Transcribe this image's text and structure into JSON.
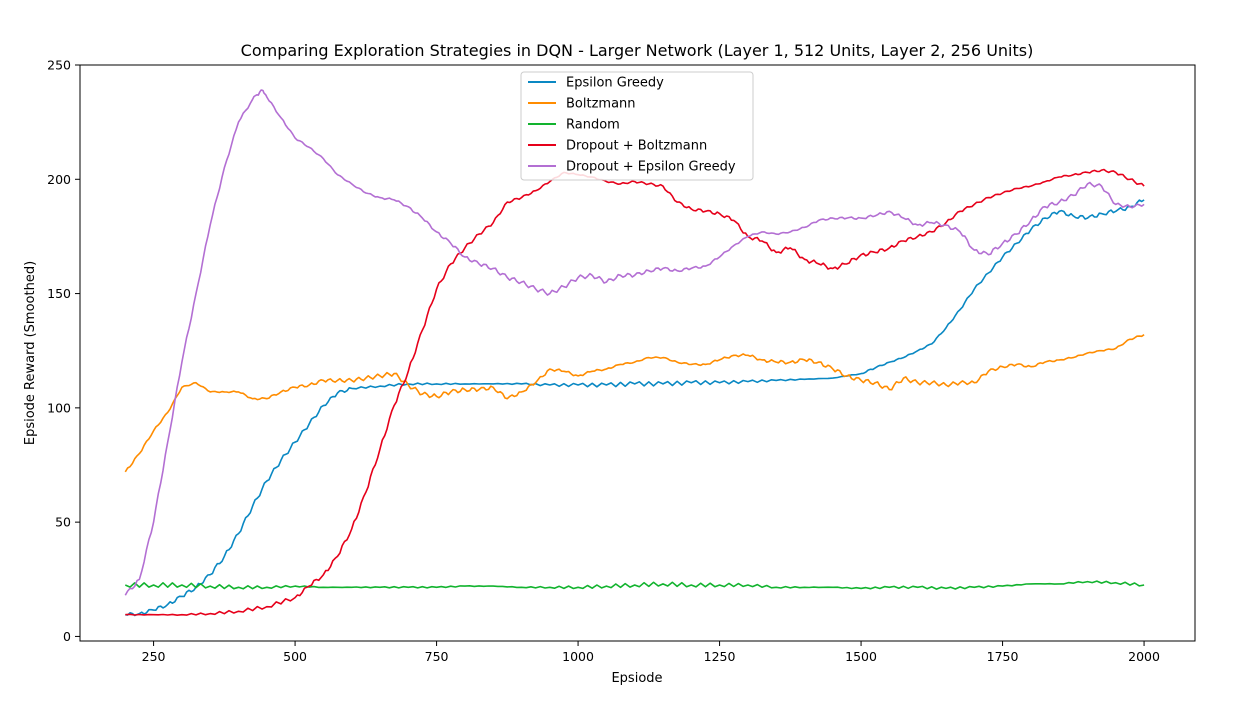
{
  "chart_data": {
    "type": "line",
    "title": "Comparing Exploration Strategies in DQN - Larger Network (Layer 1, 512 Units, Layer 2, 256 Units)",
    "xlabel": "Epsiode",
    "ylabel": "Epsiode Reward (Smoothed)",
    "xlim": [
      120,
      2090
    ],
    "ylim": [
      -2,
      250
    ],
    "xticks": [
      250,
      500,
      750,
      1000,
      1250,
      1500,
      1750,
      2000
    ],
    "yticks": [
      0,
      50,
      100,
      150,
      200,
      250
    ],
    "grid": false,
    "legend": "top-center",
    "series": [
      {
        "name": "Epsilon Greedy",
        "color": "#0a88c3",
        "x": [
          200,
          225,
          250,
          275,
          300,
          325,
          350,
          375,
          400,
          425,
          450,
          475,
          500,
          525,
          550,
          575,
          600,
          650,
          700,
          750,
          800,
          850,
          900,
          950,
          1000,
          1050,
          1100,
          1150,
          1200,
          1250,
          1300,
          1350,
          1400,
          1450,
          1500,
          1525,
          1550,
          1575,
          1600,
          1625,
          1650,
          1675,
          1700,
          1725,
          1750,
          1775,
          1800,
          1825,
          1850,
          1875,
          1900,
          1925,
          1950,
          1975,
          2000
        ],
        "values": [
          9.5,
          10,
          11.5,
          14,
          17.5,
          21.5,
          27,
          35,
          45,
          57,
          68,
          77,
          85,
          93,
          101,
          106.5,
          108.5,
          109.5,
          110.5,
          110.5,
          110.5,
          110.5,
          110.5,
          110,
          110,
          110,
          110.5,
          110.5,
          111,
          111,
          111.5,
          112,
          112.5,
          113,
          115,
          117.5,
          120,
          122,
          125,
          128,
          135,
          143,
          152,
          159,
          166,
          172,
          178,
          183,
          186,
          184,
          183,
          185,
          186,
          188,
          191
        ]
      },
      {
        "name": "Boltzmann",
        "color": "#ff8c00",
        "x": [
          200,
          225,
          250,
          275,
          300,
          325,
          350,
          375,
          400,
          425,
          450,
          475,
          500,
          525,
          550,
          575,
          600,
          625,
          650,
          675,
          700,
          725,
          750,
          775,
          800,
          825,
          850,
          875,
          900,
          925,
          950,
          975,
          1000,
          1025,
          1050,
          1075,
          1100,
          1125,
          1150,
          1175,
          1200,
          1225,
          1250,
          1275,
          1300,
          1325,
          1350,
          1375,
          1400,
          1425,
          1450,
          1475,
          1500,
          1525,
          1550,
          1575,
          1600,
          1625,
          1650,
          1675,
          1700,
          1725,
          1750,
          1775,
          1800,
          1825,
          1850,
          1875,
          1900,
          1925,
          1950,
          1975,
          2000
        ],
        "values": [
          72,
          80,
          90,
          98,
          109,
          111,
          107,
          107,
          107,
          104,
          104,
          107,
          109,
          110,
          112,
          112,
          112,
          113,
          114,
          115,
          110,
          106,
          105,
          107,
          108,
          108,
          109,
          104,
          107,
          111,
          117,
          116,
          114,
          116,
          117,
          119,
          120,
          122,
          122,
          120,
          119,
          119,
          121,
          123,
          123,
          121,
          120,
          120,
          121,
          120,
          117,
          114,
          112,
          111,
          108,
          113,
          111,
          111,
          110,
          111,
          111,
          116,
          118,
          119,
          118,
          120,
          121,
          122,
          124,
          125,
          126,
          130,
          132
        ]
      },
      {
        "name": "Random",
        "color": "#12b32e",
        "x": [
          200,
          250,
          300,
          350,
          400,
          450,
          500,
          550,
          600,
          650,
          700,
          750,
          800,
          850,
          900,
          950,
          1000,
          1050,
          1100,
          1150,
          1200,
          1250,
          1300,
          1350,
          1400,
          1450,
          1500,
          1550,
          1600,
          1650,
          1700,
          1750,
          1800,
          1850,
          1900,
          1950,
          2000
        ],
        "values": [
          22.5,
          22.5,
          22.5,
          22,
          21.5,
          21.5,
          22,
          21.5,
          21.5,
          21.5,
          21.5,
          21.5,
          22,
          22,
          21.5,
          21.5,
          21.5,
          22,
          22.5,
          23,
          22.5,
          22.5,
          22.5,
          21.5,
          21.5,
          21.5,
          21,
          21.5,
          21.5,
          21,
          21.5,
          22,
          23,
          23,
          24,
          23.5,
          22.5
        ]
      },
      {
        "name": "Dropout + Boltzmann",
        "color": "#e6001a",
        "x": [
          200,
          250,
          300,
          350,
          400,
          450,
          500,
          525,
          550,
          575,
          600,
          625,
          650,
          675,
          700,
          725,
          750,
          775,
          800,
          825,
          850,
          875,
          900,
          925,
          950,
          975,
          1000,
          1025,
          1050,
          1075,
          1100,
          1125,
          1150,
          1175,
          1200,
          1225,
          1250,
          1275,
          1300,
          1325,
          1350,
          1375,
          1400,
          1425,
          1450,
          1475,
          1500,
          1525,
          1550,
          1575,
          1600,
          1625,
          1650,
          1675,
          1700,
          1725,
          1750,
          1775,
          1800,
          1825,
          1850,
          1875,
          1900,
          1925,
          1950,
          1975,
          2000
        ],
        "values": [
          9.5,
          9.5,
          9.5,
          10,
          11,
          13,
          17,
          22,
          27,
          35,
          47,
          63,
          82,
          101,
          116,
          134,
          152,
          163,
          170,
          176,
          181,
          190,
          192,
          195,
          199,
          203,
          202,
          201,
          199,
          198,
          199,
          198,
          197,
          190,
          187,
          186,
          185,
          182,
          175,
          173,
          168,
          170,
          165,
          163,
          161,
          163,
          167,
          168,
          170,
          173,
          175,
          177,
          181,
          186,
          189,
          192,
          194,
          196,
          197,
          199,
          201,
          202,
          203,
          204,
          203,
          200,
          197
        ]
      },
      {
        "name": "Dropout + Epsilon Greedy",
        "color": "#b36fd3",
        "x": [
          200,
          225,
          250,
          275,
          300,
          325,
          350,
          375,
          400,
          425,
          440,
          450,
          475,
          500,
          525,
          550,
          575,
          600,
          625,
          650,
          675,
          700,
          725,
          750,
          775,
          800,
          825,
          850,
          875,
          900,
          925,
          950,
          975,
          1000,
          1025,
          1050,
          1075,
          1100,
          1125,
          1150,
          1175,
          1200,
          1225,
          1250,
          1275,
          1300,
          1325,
          1350,
          1375,
          1400,
          1425,
          1450,
          1475,
          1500,
          1525,
          1550,
          1575,
          1600,
          1625,
          1650,
          1675,
          1700,
          1725,
          1750,
          1775,
          1800,
          1825,
          1850,
          1875,
          1900,
          1925,
          1950,
          1975,
          2000
        ],
        "values": [
          18,
          25,
          50,
          85,
          120,
          150,
          180,
          205,
          225,
          235,
          239,
          236,
          227,
          218,
          214,
          209,
          202,
          198,
          194,
          192,
          191,
          188,
          183,
          177,
          172,
          166,
          163,
          161,
          157,
          155,
          152,
          150,
          153,
          157,
          158,
          155,
          158,
          158,
          160,
          161,
          160,
          161,
          162,
          166,
          171,
          175,
          177,
          176,
          177,
          179,
          182,
          183,
          183,
          183,
          184,
          186,
          183,
          180,
          181,
          180,
          177,
          169,
          167,
          172,
          176,
          182,
          188,
          190,
          193,
          198,
          197,
          189,
          188,
          189
        ]
      }
    ]
  }
}
